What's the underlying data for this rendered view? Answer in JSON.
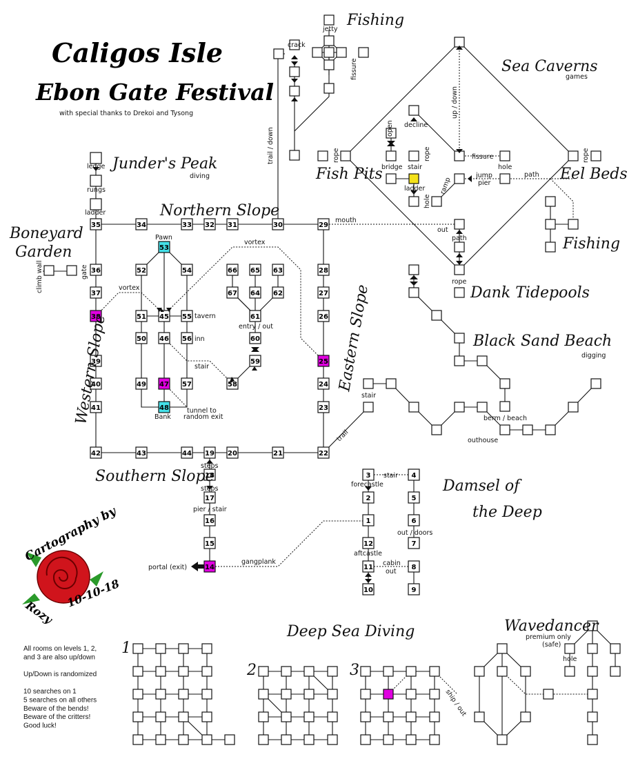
{
  "header": {
    "title": "Caligos Isle",
    "subtitle": "Ebon Gate Festival",
    "credits": "with special thanks to Drekoi and Tysong"
  },
  "regions": {
    "junders_peak": "Junder's Peak",
    "junders_peak_sub": "diving",
    "boneyard_garden_1": "Boneyard",
    "boneyard_garden_2": "Garden",
    "northern_slope": "Northern Slope",
    "western_slope": "Western Slope",
    "eastern_slope": "Eastern Slope",
    "southern_slope": "Southern Slope",
    "fishing_1": "Fishing",
    "fishing_2": "Fishing",
    "sea_caverns": "Sea Caverns",
    "sea_caverns_sub": "games",
    "fish_pits": "Fish Pits",
    "eel_beds": "Eel Beds",
    "dank_tidepools": "Dank Tidepools",
    "black_sand_beach": "Black Sand Beach",
    "black_sand_beach_sub": "digging",
    "damsel_1": "Damsel of",
    "damsel_2": "the Deep",
    "deep_sea_diving": "Deep Sea Diving",
    "wavedancer": "Wavedancer",
    "wavedancer_sub1": "premium only",
    "wavedancer_sub2": "(safe)"
  },
  "labels": {
    "ledge": "ledge",
    "rungs": "rungs",
    "ladder": "ladder",
    "gate": "gate",
    "climb_wall": "climb wall",
    "pawn": "Pawn",
    "tavern": "tavern",
    "inn": "inn",
    "bank": "Bank",
    "tunnel": "tunnel to",
    "tunnel2": "random exit",
    "vortex1": "vortex",
    "vortex2": "vortex",
    "stair": "stair",
    "entry_out": "entry / out",
    "trail_down": "trail / down",
    "crack": "crack",
    "jetty": "jetty",
    "fissure": "fissure",
    "mouth": "mouth",
    "out": "out",
    "path": "path",
    "rope": "rope",
    "decline": "decline",
    "open": "open",
    "bridge": "bridge",
    "stair2": "stair",
    "rope2": "rope",
    "ladder2": "ladder",
    "hole": "hole",
    "ramp": "ramp",
    "jump": "jump",
    "pier": "pier",
    "fissure2": "fissure",
    "hole2": "hole",
    "path2": "path",
    "up_down": "up / down",
    "rope3": "rope",
    "rope4": "rope",
    "stair3": "stair",
    "trail": "trail",
    "berm": "berm / beach",
    "outhouse": "outhouse",
    "steps1": "steps",
    "steps2": "steps",
    "pier_stair": "pier / stair",
    "portal": "portal (exit)",
    "gangplank": "gangplank",
    "forecastle": "forecastle",
    "stair4": "stair",
    "out_doors": "out / doors",
    "aftcastle": "aftcastle",
    "cabin": "cabin",
    "out2": "out",
    "ship_out": "ship / out",
    "hole3": "hole"
  },
  "rooms": {
    "r35": "35",
    "r34": "34",
    "r33": "33",
    "r32": "32",
    "r31": "31",
    "r30": "30",
    "r29": "29",
    "r36": "36",
    "r37": "37",
    "r38": "38",
    "r39": "39",
    "r40": "40",
    "r41": "41",
    "r42": "42",
    "r43": "43",
    "r44": "44",
    "r19": "19",
    "r20": "20",
    "r21": "21",
    "r22": "22",
    "r28": "28",
    "r27": "27",
    "r26": "26",
    "r25": "25",
    "r24": "24",
    "r23": "23",
    "r53": "53",
    "r52": "52",
    "r54": "54",
    "r51": "51",
    "r45": "45",
    "r55": "55",
    "r50": "50",
    "r46": "46",
    "r56": "56",
    "r49": "49",
    "r47": "47",
    "r57": "57",
    "r48": "48",
    "r66": "66",
    "r65": "65",
    "r63": "63",
    "r67": "67",
    "r64": "64",
    "r62": "62",
    "r61": "61",
    "r60": "60",
    "r59": "59",
    "r58": "58",
    "r18": "18",
    "r17": "17",
    "r16": "16",
    "r15": "15",
    "r14": "14",
    "r3": "3",
    "r4": "4",
    "r2": "2",
    "r5": "5",
    "r1": "1",
    "r6": "6",
    "r7": "7",
    "r12": "12",
    "r11": "11",
    "r8": "8",
    "r10": "10",
    "r9": "9"
  },
  "rose": {
    "line1": "Cartography by",
    "line2": "Rozy",
    "date": "10-10-18"
  },
  "diving_levels": {
    "l1": "1",
    "l2": "2",
    "l3": "3"
  },
  "notes": [
    "All rooms on levels 1, 2,",
    "and 3 are also up/down",
    "",
    "Up/Down is randomized",
    "",
    "10 searches on 1",
    "5 searches on all others",
    "Beware of the bends!",
    "Beware of the critters!",
    "Good luck!"
  ],
  "colors": {
    "magenta": "#e000e0",
    "cyan": "#44e0e8",
    "yellow": "#f4e21a",
    "rose": "#d0141c",
    "leaf": "#2a9a2a"
  }
}
